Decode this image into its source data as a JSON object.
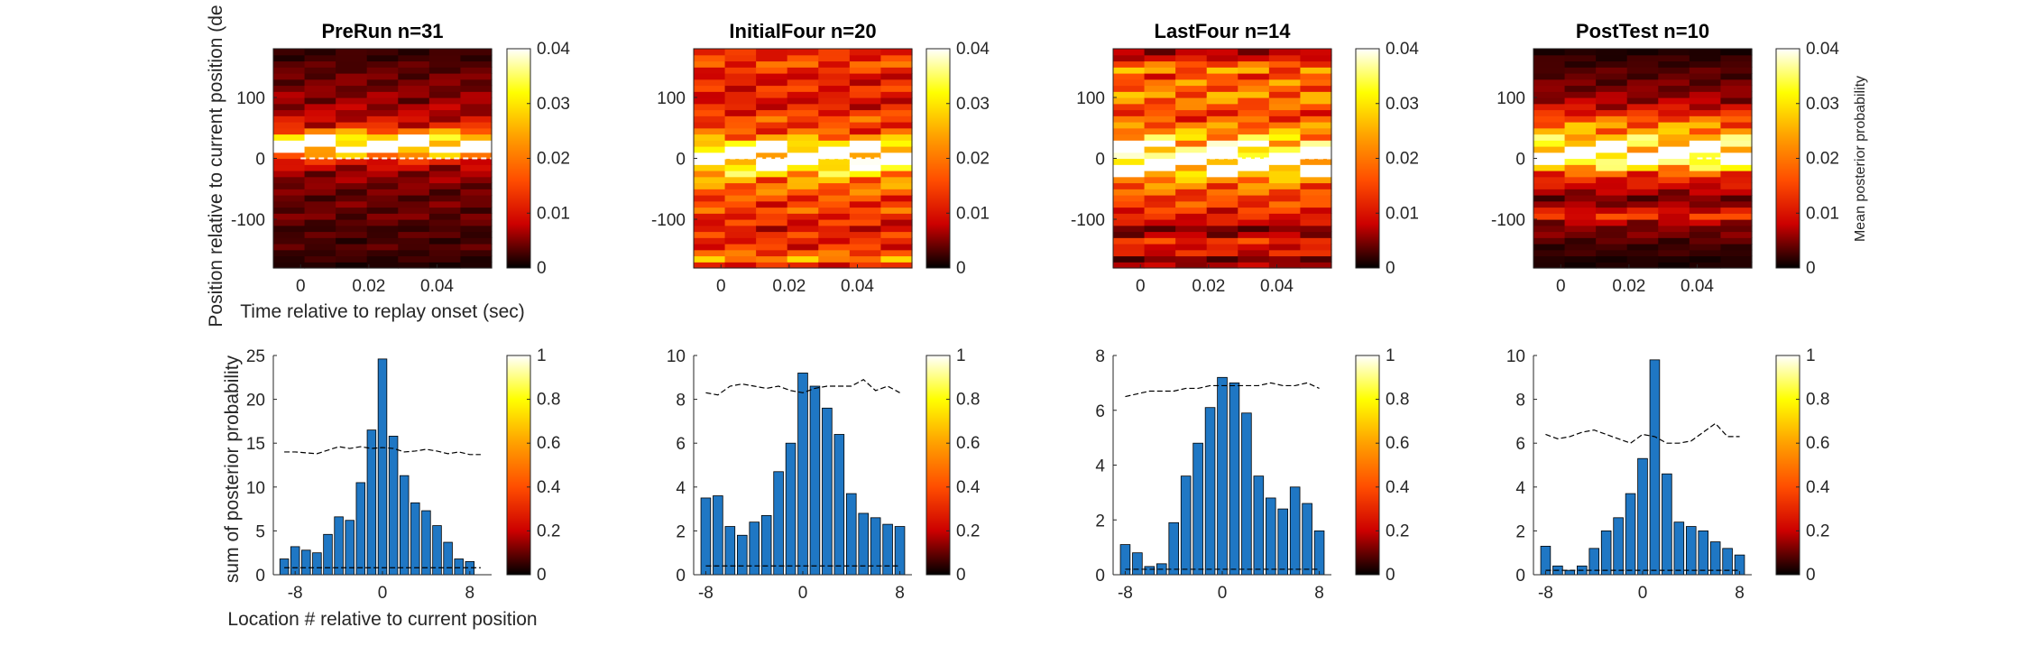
{
  "colormap": [
    "#000000",
    "#cc0000",
    "#ff4d00",
    "#ffa000",
    "#ffff00",
    "#ffffff"
  ],
  "bar_color": "#1f77c4",
  "labels": {
    "heat_ylabel": "Position relative to current position (de",
    "heat_xlabel": "Time relative to replay onset (sec)",
    "bar_ylabel": "sum of posterior probability",
    "bar_xlabel": "Location # relative to current position",
    "colorbar_label": "Mean posterior probability"
  },
  "chart_data": [
    {
      "type": "heatmap",
      "title": "PreRun n=31",
      "x_ticks": [
        "0",
        "0.02",
        "0.04"
      ],
      "x_tick_values": [
        0,
        0.02,
        0.04
      ],
      "xlim": [
        -0.008,
        0.056
      ],
      "y_ticks": [
        "100",
        "0",
        "-100"
      ],
      "y_tick_values": [
        100,
        0,
        -100
      ],
      "ylim": [
        -180,
        180
      ],
      "time_bins": [
        -0.005,
        0.005,
        0.015,
        0.025,
        0.035,
        0.045,
        0.055
      ],
      "position_profile": [
        0.001,
        0.002,
        0.002,
        0.003,
        0.002,
        0.003,
        0.002,
        0.003,
        0.004,
        0.003,
        0.004,
        0.003,
        0.004,
        0.004,
        0.005,
        0.005,
        0.007,
        0.01,
        0.02,
        0.04,
        0.04,
        0.03,
        0.018,
        0.01,
        0.008,
        0.006,
        0.006,
        0.005,
        0.005,
        0.004,
        0.004,
        0.004,
        0.003,
        0.003,
        0.002,
        0.002
      ],
      "dashed_line_y": 0,
      "dashed_line_from": 0.0,
      "colorbar": {
        "min": 0,
        "max": 0.04,
        "ticks": [
          "0.04",
          "0.03",
          "0.02",
          "0.01",
          "0"
        ],
        "tick_values": [
          0.04,
          0.03,
          0.02,
          0.01,
          0
        ]
      }
    },
    {
      "type": "heatmap",
      "title": "InitialFour n=20",
      "x_ticks": [
        "0",
        "0.02",
        "0.04"
      ],
      "x_tick_values": [
        0,
        0.02,
        0.04
      ],
      "xlim": [
        -0.008,
        0.056
      ],
      "y_ticks": [
        "100",
        "0",
        "-100"
      ],
      "y_tick_values": [
        100,
        0,
        -100
      ],
      "ylim": [
        -180,
        180
      ],
      "time_bins": [
        -0.005,
        0.005,
        0.015,
        0.025,
        0.035,
        0.045,
        0.055
      ],
      "position_profile": [
        0.01,
        0.02,
        0.015,
        0.012,
        0.01,
        0.012,
        0.008,
        0.012,
        0.01,
        0.015,
        0.012,
        0.014,
        0.016,
        0.018,
        0.02,
        0.025,
        0.03,
        0.035,
        0.04,
        0.035,
        0.03,
        0.02,
        0.015,
        0.012,
        0.015,
        0.012,
        0.01,
        0.008,
        0.01,
        0.012,
        0.01,
        0.008,
        0.012,
        0.015,
        0.012,
        0.01
      ],
      "dashed_line_y": 0,
      "dashed_line_from": 0.0,
      "colorbar": {
        "min": 0,
        "max": 0.04,
        "ticks": [
          "0.04",
          "0.03",
          "0.02",
          "0.01",
          "0"
        ],
        "tick_values": [
          0.04,
          0.03,
          0.02,
          0.01,
          0
        ]
      }
    },
    {
      "type": "heatmap",
      "title": "LastFour n=14",
      "x_ticks": [
        "0",
        "0.02",
        "0.04"
      ],
      "x_tick_values": [
        0,
        0.02,
        0.04
      ],
      "xlim": [
        -0.008,
        0.056
      ],
      "y_ticks": [
        "100",
        "0",
        "-100"
      ],
      "y_tick_values": [
        100,
        0,
        -100
      ],
      "ylim": [
        -180,
        180
      ],
      "time_bins": [
        -0.005,
        0.005,
        0.015,
        0.025,
        0.035,
        0.045,
        0.055
      ],
      "position_profile": [
        0.006,
        0.004,
        0.01,
        0.008,
        0.012,
        0.006,
        0.004,
        0.008,
        0.01,
        0.012,
        0.014,
        0.012,
        0.016,
        0.018,
        0.02,
        0.028,
        0.035,
        0.04,
        0.038,
        0.032,
        0.03,
        0.025,
        0.02,
        0.018,
        0.015,
        0.012,
        0.015,
        0.018,
        0.02,
        0.015,
        0.018,
        0.012,
        0.02,
        0.015,
        0.008,
        0.006
      ],
      "dashed_line_y": 0,
      "dashed_line_from": 0.015,
      "colorbar": {
        "min": 0,
        "max": 0.04,
        "ticks": [
          "0.04",
          "0.03",
          "0.02",
          "0.01",
          "0"
        ],
        "tick_values": [
          0.04,
          0.03,
          0.02,
          0.01,
          0
        ]
      }
    },
    {
      "type": "heatmap",
      "title": "PostTest n=10",
      "x_ticks": [
        "0",
        "0.02",
        "0.04"
      ],
      "x_tick_values": [
        0,
        0.02,
        0.04
      ],
      "xlim": [
        -0.008,
        0.056
      ],
      "y_ticks": [
        "100",
        "0",
        "-100"
      ],
      "y_tick_values": [
        100,
        0,
        -100
      ],
      "ylim": [
        -180,
        180
      ],
      "time_bins": [
        -0.005,
        0.005,
        0.015,
        0.025,
        0.035,
        0.045,
        0.055
      ],
      "position_profile": [
        0.001,
        0.001,
        0.002,
        0.002,
        0.003,
        0.004,
        0.004,
        0.006,
        0.012,
        0.008,
        0.005,
        0.004,
        0.006,
        0.008,
        0.01,
        0.015,
        0.025,
        0.035,
        0.04,
        0.038,
        0.03,
        0.025,
        0.02,
        0.02,
        0.015,
        0.01,
        0.008,
        0.006,
        0.005,
        0.004,
        0.004,
        0.003,
        0.003,
        0.002,
        0.002,
        0.001
      ],
      "dashed_line_y": 0,
      "dashed_line_from": 0.04,
      "colorbar": {
        "min": 0,
        "max": 0.04,
        "ticks": [
          "0.04",
          "0.03",
          "0.02",
          "0.01",
          "0"
        ],
        "tick_values": [
          0.04,
          0.03,
          0.02,
          0.01,
          0
        ]
      },
      "colorbar_label": "Mean posterior probability"
    },
    {
      "type": "bar",
      "x": [
        -9,
        -8,
        -7,
        -6,
        -5,
        -4,
        -3,
        -2,
        -1,
        0,
        1,
        2,
        3,
        4,
        5,
        6,
        7,
        8,
        9
      ],
      "values": [
        1.8,
        3.2,
        2.8,
        2.5,
        4.6,
        6.6,
        6.2,
        10.5,
        16.5,
        24.6,
        15.8,
        11.3,
        8.2,
        7.3,
        5.6,
        3.7,
        1.8,
        1.5,
        0
      ],
      "null_upper": [
        14,
        14,
        13.9,
        13.8,
        14.2,
        14.6,
        14.4,
        14.6,
        14.4,
        14.5,
        14.4,
        14,
        14.1,
        14.3,
        14.1,
        13.8,
        14,
        13.7,
        13.7
      ],
      "null_lower": [
        0.8,
        0.8,
        0.8,
        0.8,
        0.8,
        0.8,
        0.8,
        0.8,
        0.8,
        0.8,
        0.8,
        0.8,
        0.8,
        0.8,
        0.8,
        0.8,
        0.8,
        0.8,
        0.8
      ],
      "xlim": [
        -10,
        10
      ],
      "ylim": [
        0,
        25
      ],
      "x_ticks": [
        "-8",
        "0",
        "8"
      ],
      "x_tick_values": [
        -8,
        0,
        8
      ],
      "y_ticks": [
        "25",
        "20",
        "15",
        "10",
        "5",
        "0"
      ],
      "y_tick_values": [
        25,
        20,
        15,
        10,
        5,
        0
      ],
      "colorbar": {
        "min": 0,
        "max": 1,
        "ticks": [
          "1",
          "0.8",
          "0.6",
          "0.4",
          "0.2",
          "0"
        ],
        "tick_values": [
          1,
          0.8,
          0.6,
          0.4,
          0.2,
          0
        ]
      }
    },
    {
      "type": "bar",
      "x": [
        -8,
        -7,
        -6,
        -5,
        -4,
        -3,
        -2,
        -1,
        0,
        1,
        2,
        3,
        4,
        5,
        6,
        7,
        8
      ],
      "values": [
        3.5,
        3.6,
        2.2,
        1.8,
        2.4,
        2.7,
        4.7,
        6.0,
        9.2,
        8.6,
        7.6,
        6.4,
        3.7,
        2.8,
        2.6,
        2.3,
        2.2
      ],
      "null_upper": [
        8.3,
        8.2,
        8.6,
        8.7,
        8.6,
        8.5,
        8.6,
        8.4,
        8.3,
        8.5,
        8.6,
        8.6,
        8.6,
        8.9,
        8.4,
        8.6,
        8.3
      ],
      "null_lower": [
        0.4,
        0.4,
        0.4,
        0.4,
        0.4,
        0.4,
        0.4,
        0.4,
        0.4,
        0.4,
        0.4,
        0.4,
        0.4,
        0.4,
        0.4,
        0.4,
        0.4
      ],
      "xlim": [
        -9,
        9
      ],
      "ylim": [
        0,
        10
      ],
      "x_ticks": [
        "-8",
        "0",
        "8"
      ],
      "x_tick_values": [
        -8,
        0,
        8
      ],
      "y_ticks": [
        "10",
        "8",
        "6",
        "4",
        "2",
        "0"
      ],
      "y_tick_values": [
        10,
        8,
        6,
        4,
        2,
        0
      ],
      "colorbar": {
        "min": 0,
        "max": 1,
        "ticks": [
          "1",
          "0.8",
          "0.6",
          "0.4",
          "0.2",
          "0"
        ],
        "tick_values": [
          1,
          0.8,
          0.6,
          0.4,
          0.2,
          0
        ]
      }
    },
    {
      "type": "bar",
      "x": [
        -8,
        -7,
        -6,
        -5,
        -4,
        -3,
        -2,
        -1,
        0,
        1,
        2,
        3,
        4,
        5,
        6,
        7,
        8
      ],
      "values": [
        1.1,
        0.8,
        0.3,
        0.4,
        1.9,
        3.6,
        4.8,
        6.1,
        7.2,
        7.0,
        5.9,
        3.6,
        2.8,
        2.4,
        3.2,
        2.6,
        1.6
      ],
      "null_upper": [
        6.5,
        6.6,
        6.7,
        6.7,
        6.7,
        6.8,
        6.8,
        6.9,
        6.9,
        6.9,
        6.9,
        6.9,
        7.0,
        6.9,
        6.9,
        7.0,
        6.8
      ],
      "null_lower": [
        0.2,
        0.2,
        0.2,
        0.2,
        0.2,
        0.2,
        0.2,
        0.2,
        0.2,
        0.2,
        0.2,
        0.2,
        0.2,
        0.2,
        0.2,
        0.2,
        0.2
      ],
      "xlim": [
        -9,
        9
      ],
      "ylim": [
        0,
        8
      ],
      "x_ticks": [
        "-8",
        "0",
        "8"
      ],
      "x_tick_values": [
        -8,
        0,
        8
      ],
      "y_ticks": [
        "8",
        "6",
        "4",
        "2",
        "0"
      ],
      "y_tick_values": [
        8,
        6,
        4,
        2,
        0
      ],
      "colorbar": {
        "min": 0,
        "max": 1,
        "ticks": [
          "1",
          "0.8",
          "0.6",
          "0.4",
          "0.2",
          "0"
        ],
        "tick_values": [
          1,
          0.8,
          0.6,
          0.4,
          0.2,
          0
        ]
      }
    },
    {
      "type": "bar",
      "x": [
        -8,
        -7,
        -6,
        -5,
        -4,
        -3,
        -2,
        -1,
        0,
        1,
        2,
        3,
        4,
        5,
        6,
        7,
        8
      ],
      "values": [
        1.3,
        0.4,
        0.2,
        0.4,
        1.2,
        2.0,
        2.6,
        3.7,
        5.3,
        9.8,
        4.6,
        2.4,
        2.2,
        2.0,
        1.5,
        1.2,
        0.9
      ],
      "null_upper": [
        6.4,
        6.2,
        6.3,
        6.5,
        6.6,
        6.4,
        6.2,
        6.0,
        6.4,
        6.3,
        6.0,
        6.0,
        6.1,
        6.5,
        6.9,
        6.3,
        6.3
      ],
      "null_lower": [
        0.2,
        0.2,
        0.2,
        0.2,
        0.2,
        0.2,
        0.2,
        0.2,
        0.2,
        0.2,
        0.2,
        0.2,
        0.2,
        0.2,
        0.2,
        0.2,
        0.2
      ],
      "xlim": [
        -9,
        9
      ],
      "ylim": [
        0,
        10
      ],
      "x_ticks": [
        "-8",
        "0",
        "8"
      ],
      "x_tick_values": [
        -8,
        0,
        8
      ],
      "y_ticks": [
        "10",
        "8",
        "6",
        "4",
        "2",
        "0"
      ],
      "y_tick_values": [
        10,
        8,
        6,
        4,
        2,
        0
      ],
      "colorbar": {
        "min": 0,
        "max": 1,
        "ticks": [
          "1",
          "0.8",
          "0.6",
          "0.4",
          "0.2",
          "0"
        ],
        "tick_values": [
          1,
          0.8,
          0.6,
          0.4,
          0.2,
          0
        ]
      }
    }
  ]
}
